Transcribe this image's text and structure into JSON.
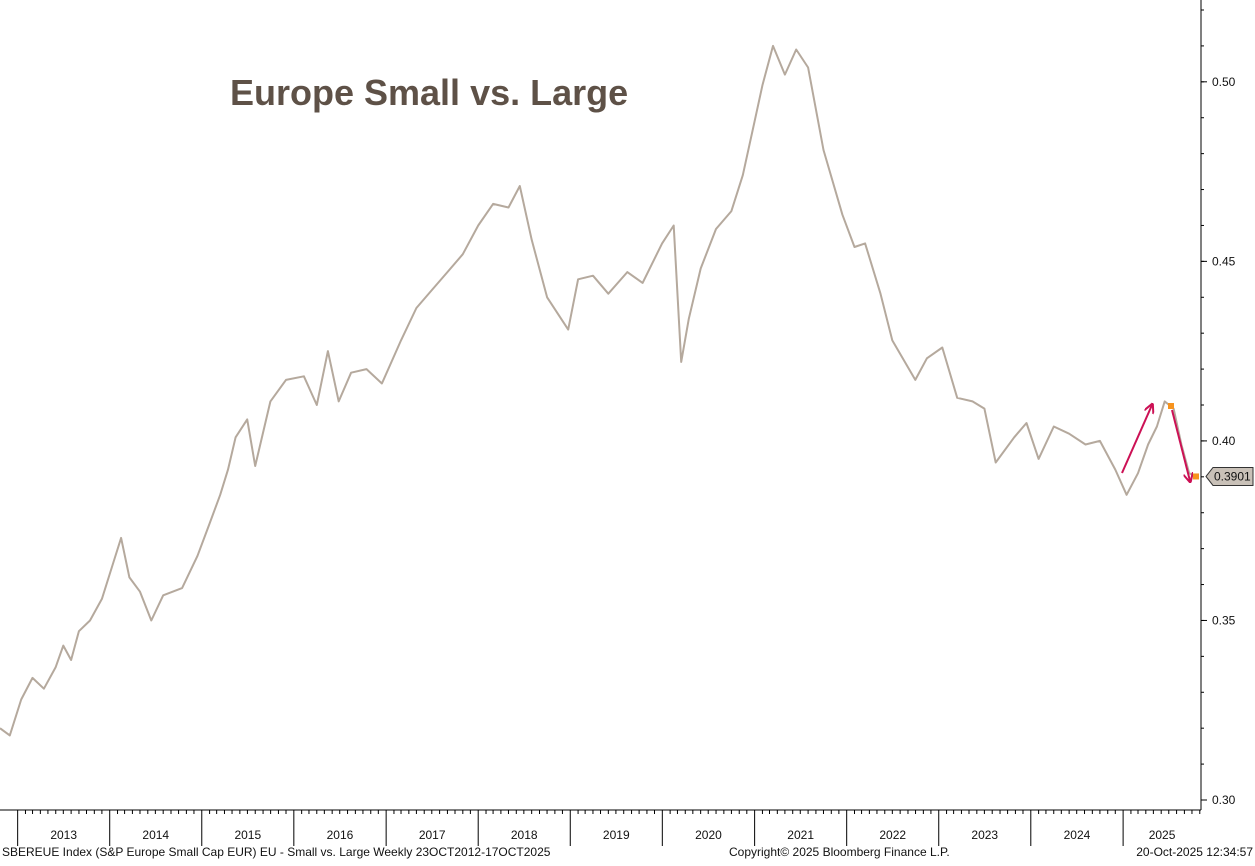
{
  "chart_data": {
    "type": "line",
    "title": "Europe Small vs. Large",
    "xlabel": "",
    "ylabel": "",
    "ylim": [
      0.3,
      0.52
    ],
    "xlim": [
      "2012-10-23",
      "2025-10-17"
    ],
    "y_ticks": [
      "0.30",
      "0.35",
      "0.40",
      "0.45",
      "0.50"
    ],
    "x_ticks": [
      "2013",
      "2014",
      "2015",
      "2016",
      "2017",
      "2018",
      "2019",
      "2020",
      "2021",
      "2022",
      "2023",
      "2024",
      "2025"
    ],
    "y_axis_side": "right",
    "grid": false,
    "line_color": "#b5a99d",
    "arrow_color": "#cc1155",
    "marker_color": "#f7931e",
    "last_value_label": "0.3901",
    "series": [
      {
        "x": [
          "2012-10-23",
          "2012-12-01",
          "2013-01-15",
          "2013-03-01",
          "2013-04-15",
          "2013-06-01",
          "2013-07-01",
          "2013-08-01",
          "2013-09-01",
          "2013-10-15",
          "2013-12-01",
          "2014-01-15",
          "2014-02-15",
          "2014-03-20",
          "2014-05-01",
          "2014-06-15",
          "2014-08-01",
          "2014-10-15",
          "2014-12-15",
          "2015-02-01",
          "2015-03-15",
          "2015-04-15",
          "2015-05-15",
          "2015-06-30",
          "2015-08-01",
          "2015-09-30",
          "2015-12-01",
          "2016-02-10",
          "2016-04-01",
          "2016-05-15",
          "2016-06-27",
          "2016-08-15",
          "2016-10-15",
          "2016-12-15",
          "2017-03-01",
          "2017-05-01",
          "2017-07-01",
          "2017-09-01",
          "2017-11-01",
          "2018-01-01",
          "2018-03-01",
          "2018-05-01",
          "2018-06-15",
          "2018-08-01",
          "2018-10-01",
          "2018-12-24",
          "2019-02-01",
          "2019-04-01",
          "2019-06-01",
          "2019-08-15",
          "2019-10-15",
          "2019-12-31",
          "2020-02-15",
          "2020-03-16",
          "2020-04-15",
          "2020-06-01",
          "2020-08-01",
          "2020-10-01",
          "2020-11-15",
          "2021-01-01",
          "2021-02-01",
          "2021-03-15",
          "2021-05-01",
          "2021-06-15",
          "2021-08-01",
          "2021-10-01",
          "2021-12-15",
          "2022-02-01",
          "2022-03-15",
          "2022-05-15",
          "2022-07-01",
          "2022-09-30",
          "2022-11-15",
          "2023-01-15",
          "2023-03-15",
          "2023-05-15",
          "2023-07-01",
          "2023-08-15",
          "2023-10-27",
          "2023-12-15",
          "2024-02-01",
          "2024-04-01",
          "2024-06-01",
          "2024-08-05",
          "2024-10-01",
          "2024-12-01",
          "2025-01-15",
          "2025-03-01",
          "2025-04-10",
          "2025-05-15",
          "2025-06-15",
          "2025-07-20",
          "2025-08-20",
          "2025-09-20",
          "2025-10-17"
        ],
        "y": [
          0.32,
          0.318,
          0.328,
          0.334,
          0.331,
          0.337,
          0.343,
          0.339,
          0.347,
          0.35,
          0.356,
          0.366,
          0.373,
          0.362,
          0.358,
          0.35,
          0.357,
          0.359,
          0.368,
          0.377,
          0.385,
          0.392,
          0.401,
          0.406,
          0.393,
          0.411,
          0.417,
          0.418,
          0.41,
          0.425,
          0.411,
          0.419,
          0.42,
          0.416,
          0.428,
          0.437,
          0.442,
          0.447,
          0.452,
          0.46,
          0.466,
          0.465,
          0.471,
          0.456,
          0.44,
          0.431,
          0.445,
          0.446,
          0.441,
          0.447,
          0.444,
          0.455,
          0.46,
          0.422,
          0.434,
          0.448,
          0.459,
          0.464,
          0.474,
          0.489,
          0.499,
          0.51,
          0.502,
          0.509,
          0.504,
          0.481,
          0.463,
          0.454,
          0.455,
          0.441,
          0.428,
          0.417,
          0.423,
          0.426,
          0.412,
          0.411,
          0.409,
          0.394,
          0.401,
          0.405,
          0.395,
          0.404,
          0.402,
          0.399,
          0.4,
          0.392,
          0.385,
          0.391,
          0.399,
          0.404,
          0.411,
          0.409,
          0.399,
          0.391,
          0.3901
        ]
      }
    ]
  },
  "footer": {
    "source": "SBEREUE Index (S&P Europe Small Cap EUR) EU - Small vs. Large Weekly 23OCT2012-17OCT2025",
    "copyright": "Copyright© 2025 Bloomberg Finance L.P.",
    "timestamp": "20-Oct-2025 12:34:57"
  }
}
